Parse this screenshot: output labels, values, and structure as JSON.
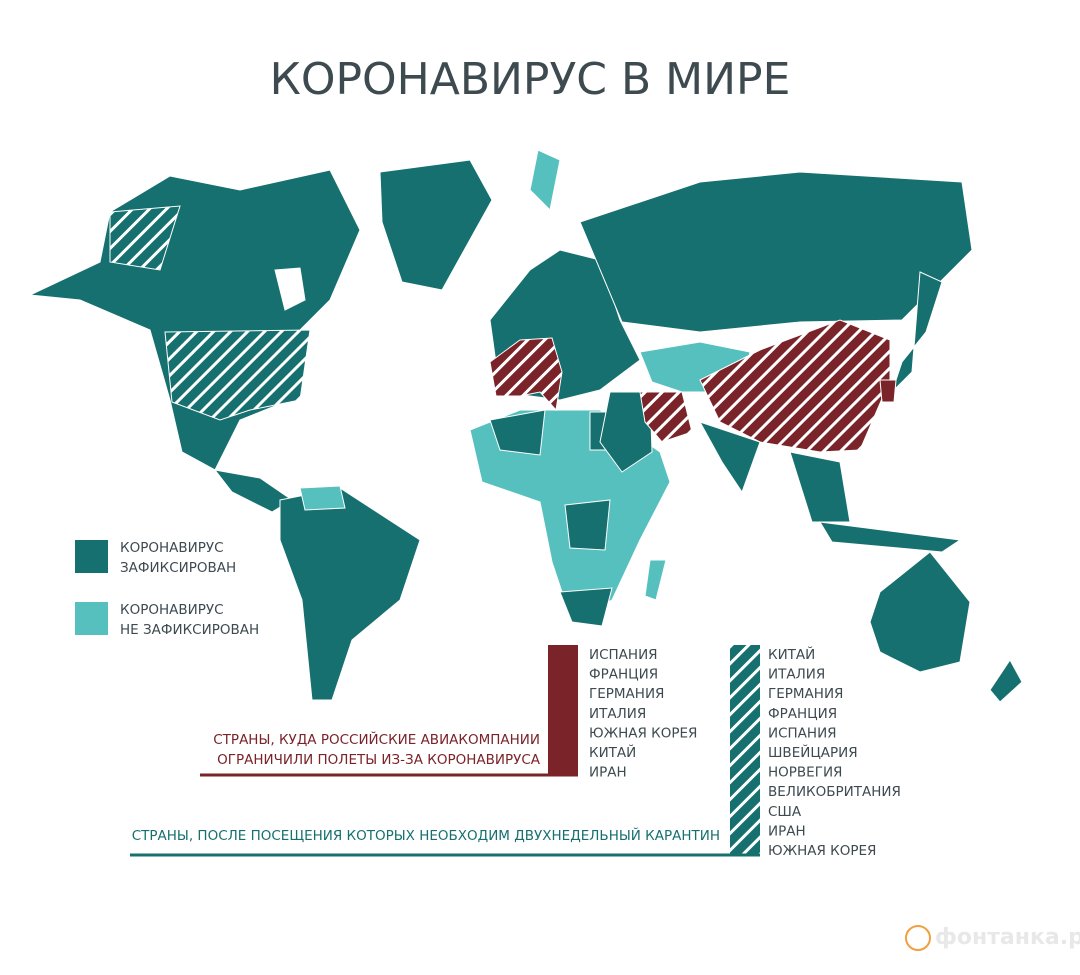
{
  "title": "КОРОНАВИРУС В МИРЕ",
  "legend": [
    {
      "lines": [
        "КОРОНАВИРУС",
        "ЗАФИКСИРОВАН"
      ],
      "color": "#16706f"
    },
    {
      "lines": [
        "КОРОНАВИРУС",
        "НЕ ЗАФИКСИРОВАН"
      ],
      "color": "#56c0bf"
    }
  ],
  "flight_restrictions": {
    "caption": [
      "СТРАНЫ, КУДА РОССИЙСКИЕ АВИАКОМПАНИИ",
      "ОГРАНИЧИЛИ ПОЛЕТЫ ИЗ-ЗА КОРОНАВИРУСА"
    ],
    "color": "#7a2329",
    "countries": [
      "ИСПАНИЯ",
      "ФРАНЦИЯ",
      "ГЕРМАНИЯ",
      "ИТАЛИЯ",
      "ЮЖНАЯ КОРЕЯ",
      "КИТАЙ",
      "ИРАН"
    ]
  },
  "quarantine": {
    "caption": "СТРАНЫ, ПОСЛЕ ПОСЕЩЕНИЯ КОТОРЫХ НЕОБХОДИМ ДВУХНЕДЕЛЬНЫЙ КАРАНТИН",
    "color": "#16706f",
    "countries": [
      "КИТАЙ",
      "ИТАЛИЯ",
      "ГЕРМАНИЯ",
      "ФРАНЦИЯ",
      "ИСПАНИЯ",
      "ШВЕЙЦАРИЯ",
      "НОРВЕГИЯ",
      "ВЕЛИКОБРИТАНИЯ",
      "США",
      "ИРАН",
      "ЮЖНАЯ КОРЕЯ"
    ]
  },
  "logo": "фонтанка.ру"
}
